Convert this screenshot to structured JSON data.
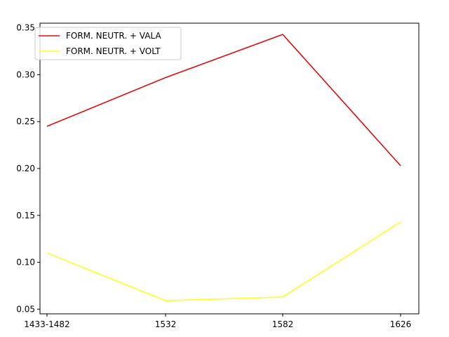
{
  "chart_data": {
    "type": "line",
    "title": "",
    "xlabel": "",
    "ylabel": "",
    "categories": [
      "1433-1482",
      "1532",
      "1582",
      "1626"
    ],
    "ylim": [
      0.045,
      0.355
    ],
    "yticks": [
      0.05,
      0.1,
      0.15,
      0.2,
      0.25,
      0.3,
      0.35
    ],
    "ytick_labels": [
      "0.05",
      "0.10",
      "0.15",
      "0.20",
      "0.25",
      "0.30",
      "0.35"
    ],
    "grid": false,
    "legend_position": "top-left",
    "series": [
      {
        "name": "FORM. NEUTR. + VALA",
        "color": "#dd1111",
        "values": [
          0.245,
          0.297,
          0.343,
          0.203
        ]
      },
      {
        "name": "FORM. NEUTR. + VOLT",
        "color": "#ffff22",
        "values": [
          0.11,
          0.059,
          0.063,
          0.143
        ]
      }
    ]
  }
}
